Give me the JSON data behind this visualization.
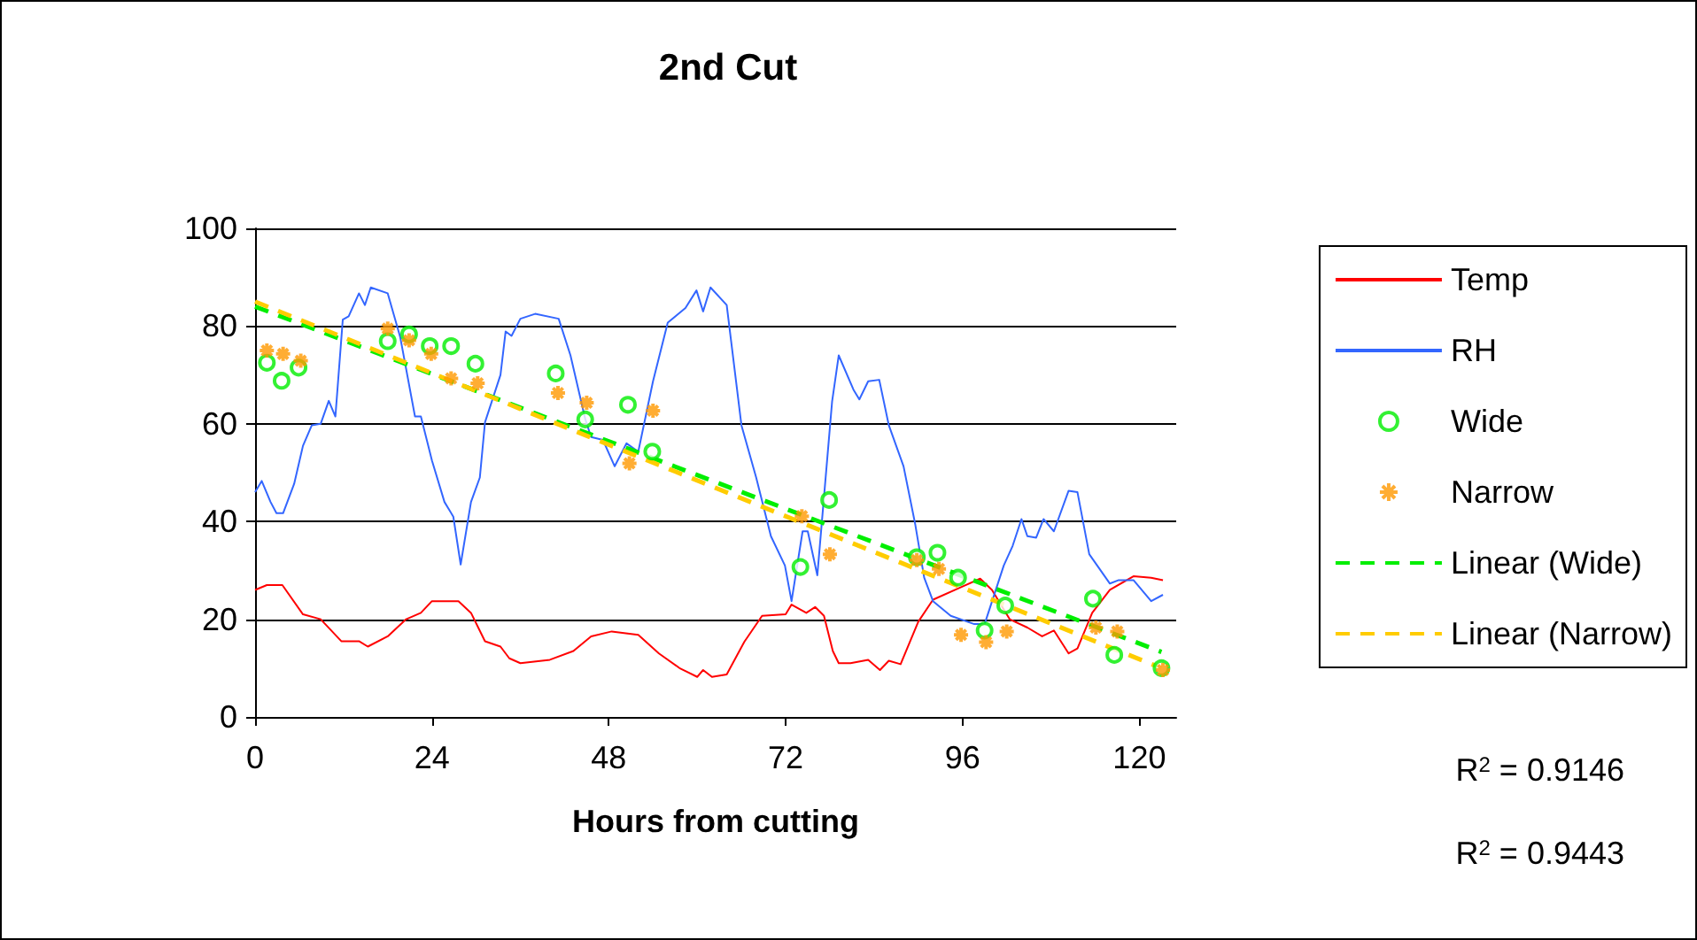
{
  "chart_data": {
    "type": "line",
    "title": "2nd Cut",
    "xlabel": "Hours from cutting",
    "xlim": [
      0,
      125
    ],
    "xticks": [
      0,
      24,
      48,
      72,
      96,
      120
    ],
    "ylim": [
      0,
      100
    ],
    "yticks": [
      0,
      20,
      40,
      60,
      80,
      100
    ],
    "grid": "y",
    "legend": "right",
    "annotations": [
      "R$^{2}$ = 0.9146",
      "R$^{2}$ = 0.9443"
    ],
    "series": [
      {
        "name": "Temp",
        "color": "#ff0000",
        "marker": "none",
        "line_style": "solid",
        "x": [
          0,
          1.6,
          3.7,
          6.5,
          8.9,
          11.7,
          14.1,
          15.3,
          18,
          20.5,
          22.5,
          24,
          27.6,
          29.3,
          31.2,
          33.3,
          34.5,
          36,
          40,
          43.2,
          45.6,
          48.4,
          52,
          54.8,
          57.6,
          60,
          60.8,
          62,
          64,
          66.4,
          68.8,
          72,
          72.8,
          74.8,
          76,
          77.2,
          78.4,
          79.2,
          80.8,
          83.2,
          84.8,
          86,
          87.6,
          90,
          92,
          96,
          98.4,
          100,
          102.4,
          104.8,
          106.8,
          108.4,
          110.4,
          111.6,
          113.6,
          116,
          119.2,
          121.6,
          123.2
        ],
        "values": [
          26,
          27,
          27,
          21,
          20,
          15.5,
          15.5,
          14.4,
          16.5,
          20,
          21.3,
          23.7,
          23.7,
          21.3,
          15.5,
          14.4,
          12,
          11,
          11.7,
          13.5,
          16.5,
          17.5,
          16.8,
          13,
          10,
          8.2,
          9.6,
          8.2,
          8.7,
          15.4,
          20.7,
          21,
          23,
          21.3,
          22.5,
          20.7,
          13.5,
          11,
          11,
          11.7,
          9.6,
          11.5,
          10.8,
          19.5,
          24,
          26.7,
          28.3,
          26,
          20,
          18.3,
          16.5,
          17.7,
          13,
          14,
          21.3,
          26,
          28.8,
          28.5,
          28
        ]
      },
      {
        "name": "RH",
        "color": "#3366ff",
        "marker": "none",
        "line_style": "solid",
        "x": [
          0,
          0.9,
          2.1,
          2.9,
          3.8,
          5.3,
          6.5,
          7.7,
          8.9,
          10,
          10.9,
          11.9,
          12.7,
          14.1,
          14.9,
          15.7,
          18,
          19.7,
          21.7,
          22.5,
          24,
          25.7,
          26.9,
          27.9,
          29.3,
          30.5,
          31.2,
          33.3,
          34,
          34.8,
          36,
          38,
          41.2,
          42.8,
          44.8,
          45.6,
          47.2,
          48.8,
          50.4,
          52,
          54,
          56,
          57.2,
          58.4,
          59.9,
          60.8,
          61.8,
          64,
          66,
          68,
          70,
          71.9,
          72.8,
          74.3,
          75,
          76.3,
          78.3,
          79.2,
          81.2,
          82,
          83.2,
          84.7,
          86,
          88,
          89.6,
          90.8,
          92,
          94.4,
          97.6,
          99,
          101.6,
          102.8,
          104,
          104.8,
          106,
          107,
          108.4,
          110.4,
          111.6,
          113.2,
          116,
          117.2,
          119.2,
          121.6,
          123.2
        ],
        "values": [
          46,
          48.3,
          44,
          41.7,
          41.7,
          47.7,
          55.5,
          59.7,
          60,
          64.7,
          61.5,
          81.3,
          82,
          86.7,
          84.3,
          87.9,
          86.7,
          77.7,
          61.5,
          61.5,
          52.5,
          44,
          41,
          31.2,
          44,
          49,
          60.3,
          70,
          78.9,
          78,
          81.5,
          82.5,
          81.5,
          74,
          61,
          57.3,
          56.7,
          51.3,
          56,
          54.3,
          68.7,
          80.7,
          82.2,
          83.7,
          87.3,
          83,
          87.9,
          84.3,
          59.7,
          49,
          37,
          31,
          23.7,
          38,
          38,
          29,
          64.5,
          74,
          67,
          65,
          68.7,
          69,
          59.7,
          51.3,
          39.3,
          28.5,
          23.7,
          20.7,
          19,
          19,
          31,
          35,
          40.5,
          37,
          36.7,
          40.5,
          38,
          46.3,
          46,
          33.3,
          27.3,
          28,
          28,
          23.7,
          25
        ]
      },
      {
        "name": "Wide",
        "type": "scatter",
        "color": "#00ee00",
        "marker": "circle",
        "x": [
          1.6,
          3.6,
          5.9,
          18,
          20.9,
          23.7,
          26.6,
          29.9,
          40.8,
          44.8,
          50.6,
          53.9,
          74,
          77.9,
          89.8,
          92.6,
          95.4,
          99,
          101.8,
          113.7,
          116.6,
          123
        ],
        "values": [
          72.5,
          68.8,
          71.5,
          76.9,
          78.3,
          75.9,
          75.9,
          72.3,
          70.3,
          60.9,
          63.9,
          54.3,
          30.7,
          44.4,
          32.7,
          33.6,
          28.5,
          17.7,
          22.8,
          24.2,
          12.7,
          10
        ]
      },
      {
        "name": "Narrow",
        "type": "scatter",
        "color": "#ff9900",
        "marker": "cross",
        "x": [
          1.6,
          3.8,
          6.2,
          18,
          20.9,
          23.9,
          26.6,
          30.2,
          41.1,
          45,
          50.8,
          54,
          74.2,
          78,
          89.8,
          92.8,
          95.8,
          99.2,
          102,
          114.1,
          117,
          123.2
        ],
        "values": [
          75,
          74.3,
          72.9,
          79.5,
          77.1,
          74.3,
          69.3,
          68.3,
          66.3,
          64.3,
          51.9,
          62.7,
          41.1,
          33.3,
          32.1,
          30.3,
          16.8,
          15.3,
          17.5,
          18.3,
          17.5,
          9.6
        ]
      },
      {
        "name": "Linear (Wide)",
        "color": "#00ee00",
        "marker": "none",
        "line_style": "dashed",
        "x": [
          0,
          123
        ],
        "values": [
          84,
          13.3
        ]
      },
      {
        "name": "Linear (Narrow)",
        "color": "#ffcc00",
        "marker": "none",
        "line_style": "dashed",
        "x": [
          0,
          123
        ],
        "values": [
          85,
          10
        ]
      }
    ]
  }
}
